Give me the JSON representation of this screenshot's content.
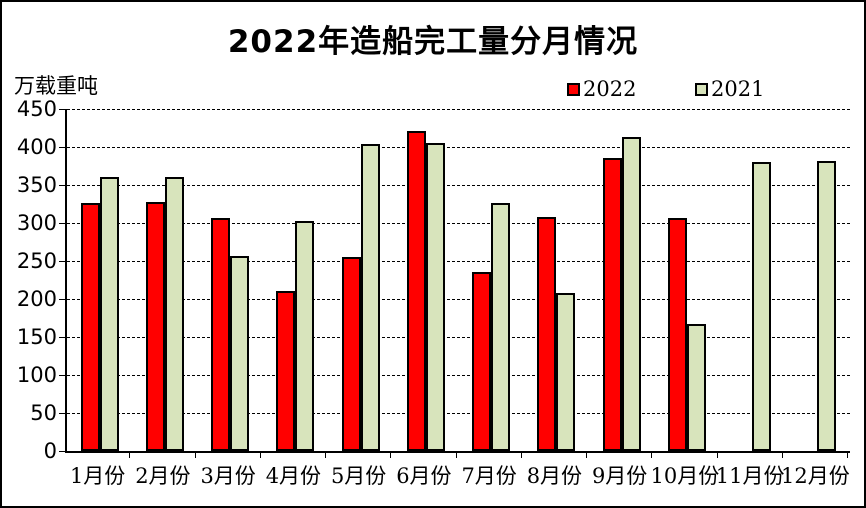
{
  "title": "2022年造船完工量分月情况",
  "y_axis_unit": "万载重吨",
  "legend": [
    {
      "label": "2022",
      "color": "#ff0000"
    },
    {
      "label": "2021",
      "color": "#d8e4bc"
    }
  ],
  "chart_data": {
    "type": "bar",
    "title": "2022年造船完工量分月情况",
    "ylabel": "万载重吨",
    "xlabel": "",
    "categories": [
      "1月份",
      "2月份",
      "3月份",
      "4月份",
      "5月份",
      "6月份",
      "7月份",
      "8月份",
      "9月份",
      "10月份",
      "11月份",
      "12月份"
    ],
    "series": [
      {
        "name": "2022",
        "color": "#ff0000",
        "values": [
          326,
          327,
          307,
          210,
          255,
          421,
          235,
          308,
          385,
          307,
          null,
          null
        ]
      },
      {
        "name": "2021",
        "color": "#d8e4bc",
        "values": [
          361,
          360,
          256,
          302,
          404,
          405,
          326,
          208,
          413,
          167,
          380,
          381
        ]
      }
    ],
    "ylim": [
      0,
      450
    ],
    "ytick_step": 50,
    "ytick_labels": [
      "0",
      "50",
      "100",
      "150",
      "200",
      "250",
      "300",
      "350",
      "400",
      "450"
    ],
    "grid": "horizontal-dashed",
    "legend_position": "top-right-inline",
    "bar_outline_color": "#000000"
  }
}
